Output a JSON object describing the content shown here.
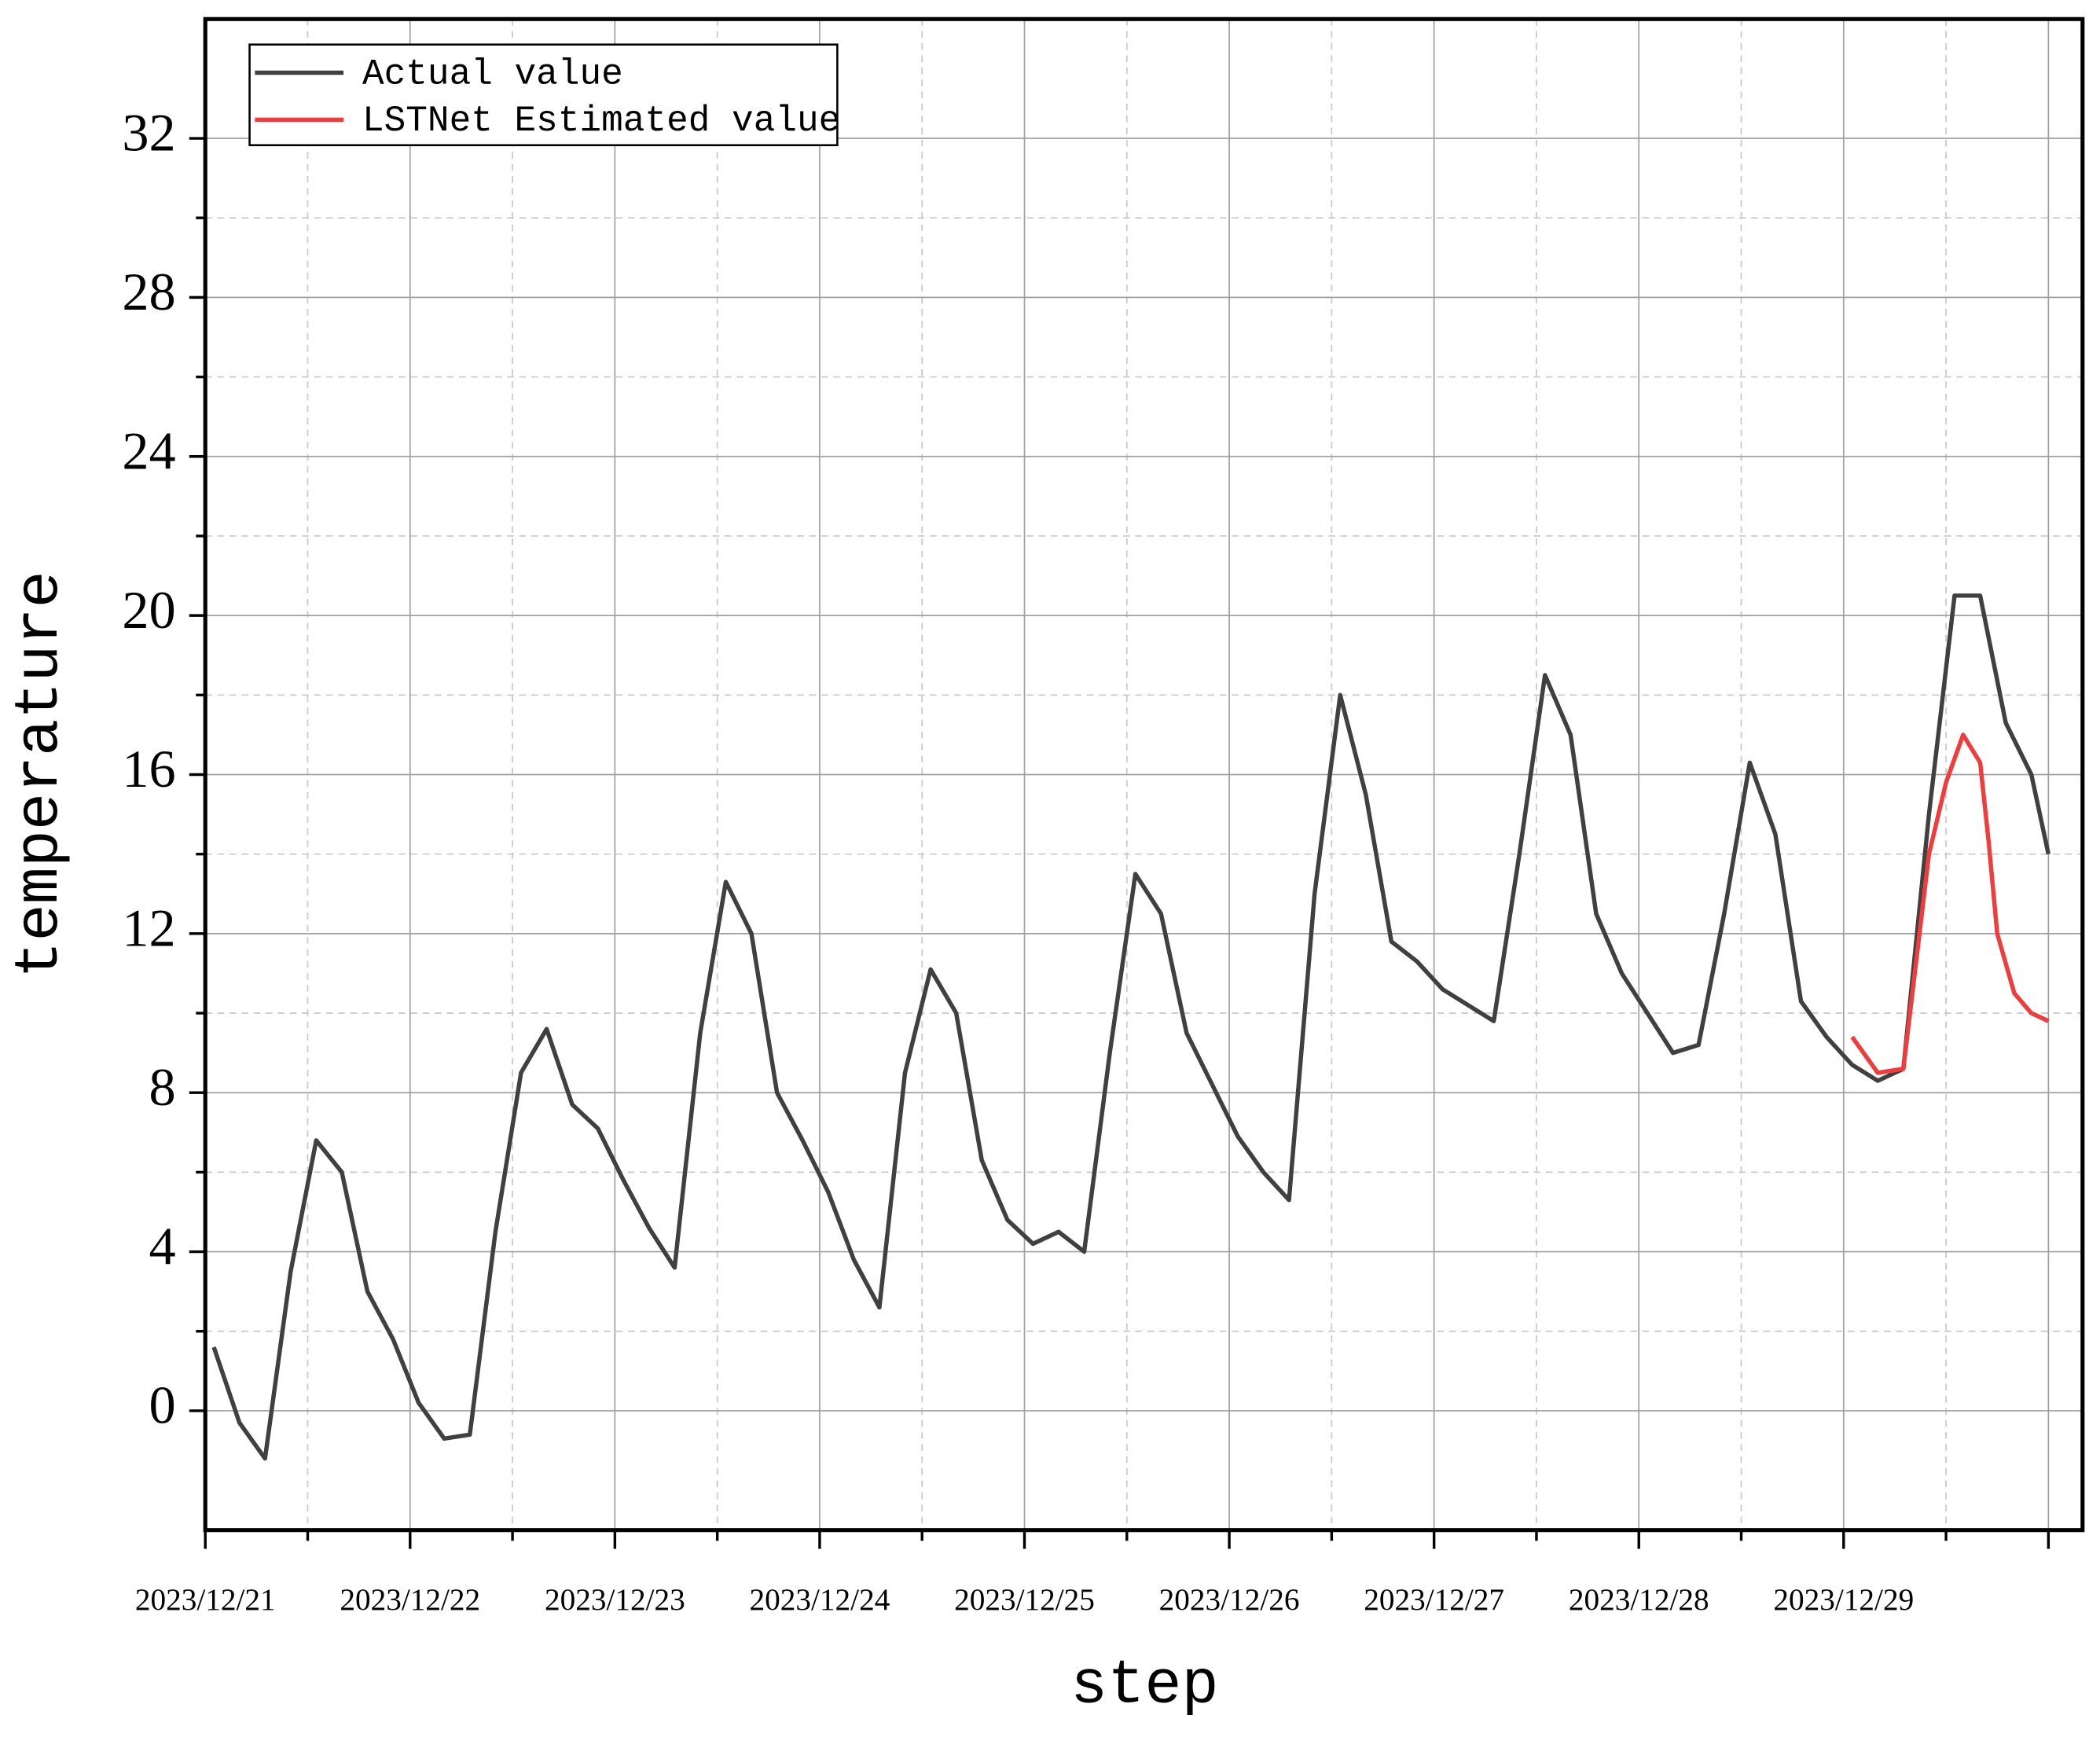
{
  "chart_data": {
    "type": "line",
    "x_label": "step",
    "y_label": "temperature",
    "xlim": [
      0,
      220
    ],
    "ylim": [
      -3,
      35
    ],
    "xticks": [
      {
        "value": 0,
        "label": "2023/12/21"
      },
      {
        "value": 24,
        "label": "2023/12/22"
      },
      {
        "value": 48,
        "label": "2023/12/23"
      },
      {
        "value": 72,
        "label": "2023/12/24"
      },
      {
        "value": 96,
        "label": "2023/12/25"
      },
      {
        "value": 120,
        "label": "2023/12/26"
      },
      {
        "value": 144,
        "label": "2023/12/27"
      },
      {
        "value": 168,
        "label": "2023/12/28"
      },
      {
        "value": 192,
        "label": "2023/12/29"
      },
      {
        "value": 216,
        "label": null
      }
    ],
    "yticks": [
      0,
      4,
      8,
      12,
      16,
      20,
      24,
      28,
      32
    ],
    "grid": true,
    "legend": "upper left",
    "series": [
      {
        "name": "Actual value",
        "color": "#404040",
        "x": [
          1,
          4,
          7,
          10,
          13,
          16,
          19,
          22,
          25,
          28,
          31,
          34,
          37,
          40,
          43,
          46,
          49,
          52,
          55,
          58,
          61,
          64,
          67,
          70,
          73,
          76,
          79,
          82,
          85,
          88,
          91,
          94,
          97,
          100,
          103,
          106,
          109,
          112,
          115,
          118,
          121,
          124,
          127,
          130,
          133,
          136,
          139,
          142,
          145,
          148,
          151,
          154,
          157,
          160,
          163,
          166,
          169,
          172,
          175,
          178,
          181,
          184,
          187,
          190,
          193,
          196,
          199,
          202,
          205,
          208,
          211,
          214,
          216
        ],
        "values": [
          1.6,
          -0.3,
          -1.2,
          3.5,
          6.8,
          6.0,
          3.0,
          1.8,
          0.2,
          -0.7,
          -0.6,
          4.5,
          8.5,
          9.6,
          7.7,
          7.1,
          5.8,
          4.6,
          3.6,
          9.5,
          13.3,
          12.0,
          8.0,
          6.8,
          5.5,
          3.8,
          2.6,
          8.5,
          11.1,
          10.0,
          6.3,
          4.8,
          4.2,
          4.5,
          4.0,
          9.0,
          13.5,
          12.5,
          9.5,
          8.2,
          6.9,
          6.0,
          5.3,
          13.0,
          18.0,
          15.5,
          11.8,
          11.3,
          10.6,
          10.2,
          9.8,
          14.0,
          18.5,
          17.0,
          12.5,
          11.0,
          10.0,
          9.0,
          9.2,
          12.5,
          16.3,
          14.5,
          10.3,
          9.4,
          8.7,
          8.3,
          8.6,
          15.0,
          20.5,
          20.5,
          17.3,
          16.0,
          14.0
        ]
      },
      {
        "name": "LSTNet Estimated value",
        "color": "#f03c3c",
        "x": [
          193,
          196,
          199,
          202,
          204,
          206,
          208,
          209,
          210,
          212,
          214,
          216
        ],
        "values": [
          9.4,
          8.5,
          8.6,
          14.0,
          15.8,
          17.0,
          16.3,
          14.3,
          12.0,
          10.5,
          10.0,
          9.8
        ]
      }
    ]
  }
}
